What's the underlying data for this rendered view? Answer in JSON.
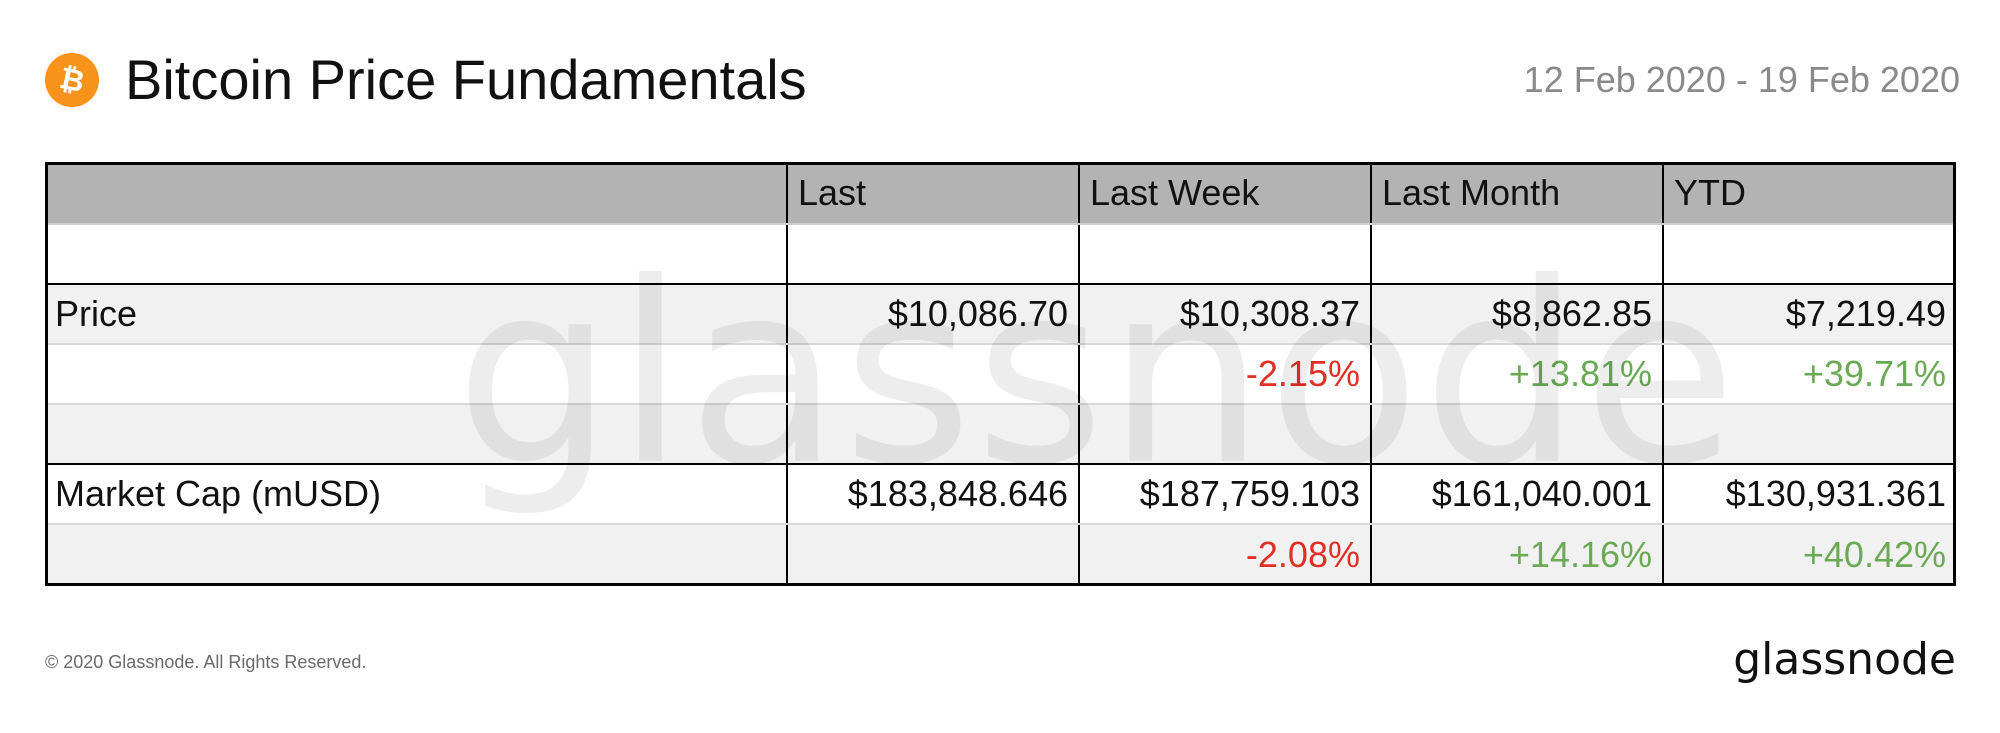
{
  "header": {
    "title": "Bitcoin Price Fundamentals",
    "date_range": "12 Feb 2020 - 19 Feb 2020",
    "icon": "bitcoin-icon",
    "icon_color": "#f7931a"
  },
  "table": {
    "columns": [
      "",
      "Last",
      "Last Week",
      "Last Month",
      "YTD"
    ],
    "rows": [
      {
        "label": "",
        "cells": [
          "",
          "",
          "",
          ""
        ]
      },
      {
        "label": "Price",
        "cells": [
          "$10,086.70",
          "$10,308.37",
          "$8,862.85",
          "$7,219.49"
        ]
      },
      {
        "label": "",
        "cells": [
          "",
          "-2.15%",
          "+13.81%",
          "+39.71%"
        ]
      },
      {
        "label": "",
        "cells": [
          "",
          "",
          "",
          ""
        ]
      },
      {
        "label": "Market Cap (mUSD)",
        "cells": [
          "$183,848.646",
          "$187,759.103",
          "$161,040.001",
          "$130,931.361"
        ]
      },
      {
        "label": "",
        "cells": [
          "",
          "-2.08%",
          "+14.16%",
          "+40.42%"
        ]
      }
    ]
  },
  "colors": {
    "negative": "#e03026",
    "positive": "#6aaa55",
    "header_bg": "#b3b3b3"
  },
  "watermark": "glassnode",
  "footer": {
    "copyright": "© 2020 Glassnode. All Rights Reserved.",
    "logo": "glassnode"
  }
}
